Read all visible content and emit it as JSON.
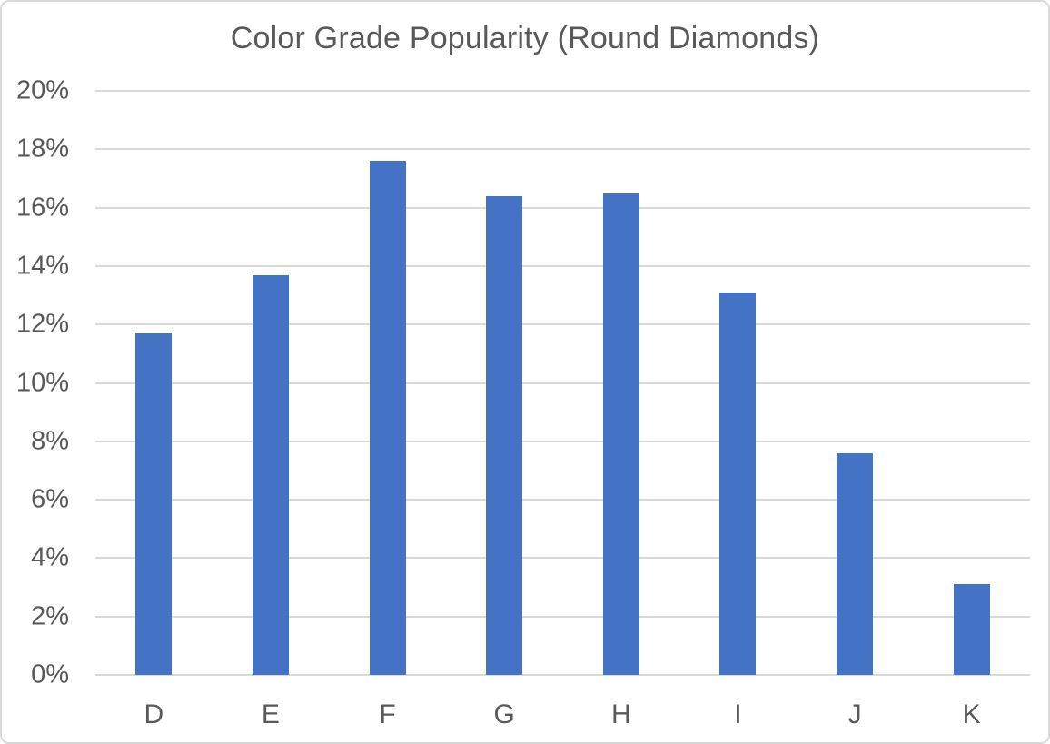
{
  "chart_data": {
    "type": "bar",
    "title": "Color Grade Popularity (Round Diamonds)",
    "categories": [
      "D",
      "E",
      "F",
      "G",
      "H",
      "I",
      "J",
      "K"
    ],
    "values": [
      11.7,
      13.7,
      17.6,
      16.4,
      16.5,
      13.1,
      7.6,
      3.1
    ],
    "unit": "%",
    "xlabel": "",
    "ylabel": "",
    "ylim": [
      0,
      20
    ],
    "ytick_step": 2,
    "ytick_labels": [
      "0%",
      "2%",
      "4%",
      "6%",
      "8%",
      "10%",
      "12%",
      "14%",
      "16%",
      "18%",
      "20%"
    ],
    "grid": true,
    "legend_position": "none",
    "colors": {
      "bar": "#4472C4",
      "gridline": "#D9D9D9",
      "text": "#595959",
      "border": "#D9D9D9",
      "background": "#FFFFFF"
    }
  }
}
